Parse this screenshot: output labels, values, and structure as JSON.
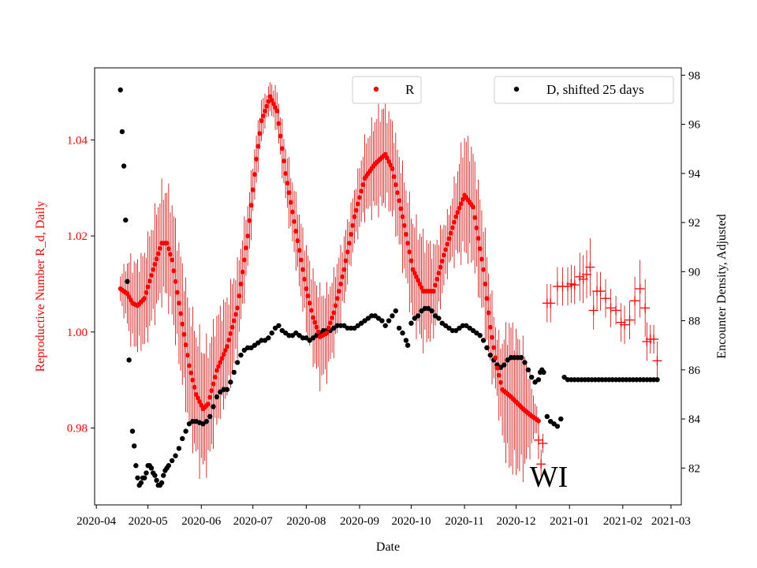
{
  "chart_data": {
    "type": "scatter",
    "title": "",
    "xlabel": "Date",
    "ylabel_left": "Reproductive Number R_d, Daily",
    "ylabel_right": "Encounter Density, Adjusted",
    "annotation": "WI",
    "x_tick_labels": [
      "2020-04",
      "2020-05",
      "2020-06",
      "2020-07",
      "2020-08",
      "2020-09",
      "2020-10",
      "2020-11",
      "2020-12",
      "2021-01",
      "2021-02",
      "2021-03"
    ],
    "x_tick_days": [
      0,
      30,
      61,
      91,
      122,
      153,
      183,
      214,
      244,
      275,
      306,
      334
    ],
    "xlim_days": [
      -1,
      340
    ],
    "left_axis": {
      "ylim": [
        0.964,
        1.055
      ],
      "ticks": [
        0.98,
        1.0,
        1.02,
        1.04
      ],
      "tick_labels": [
        "0.98",
        "1.00",
        "1.02",
        "1.04"
      ],
      "color": "#ff0000"
    },
    "right_axis": {
      "ylim": [
        80.5,
        98.3
      ],
      "ticks": [
        82,
        84,
        86,
        88,
        90,
        92,
        94,
        96,
        98
      ],
      "tick_labels": [
        "82",
        "84",
        "86",
        "88",
        "90",
        "92",
        "94",
        "96",
        "98"
      ],
      "color": "#000000"
    },
    "legend": [
      {
        "label": "R",
        "color": "#ff0000",
        "position": "top-center"
      },
      {
        "label": "D, shifted 25 days",
        "color": "#000000",
        "position": "top-right"
      }
    ],
    "series": [
      {
        "name": "R",
        "axis": "left",
        "color": "#ff0000",
        "marker": "circle",
        "anchors": [
          [
            14,
            1.009
          ],
          [
            18,
            1.008
          ],
          [
            21,
            1.006
          ],
          [
            24,
            1.0055
          ],
          [
            28,
            1.007
          ],
          [
            33,
            1.013
          ],
          [
            38,
            1.0185
          ],
          [
            41,
            1.0185
          ],
          [
            44,
            1.015
          ],
          [
            48,
            1.006
          ],
          [
            54,
            0.993
          ],
          [
            58,
            0.987
          ],
          [
            62,
            0.984
          ],
          [
            65,
            0.985
          ],
          [
            70,
            0.992
          ],
          [
            76,
            0.997
          ],
          [
            82,
            1.005
          ],
          [
            88,
            1.02
          ],
          [
            93,
            1.036
          ],
          [
            96,
            1.044
          ],
          [
            101,
            1.049
          ],
          [
            105,
            1.046
          ],
          [
            110,
            1.033
          ],
          [
            116,
            1.021
          ],
          [
            122,
            1.009
          ],
          [
            126,
            1.003
          ],
          [
            130,
            0.999
          ],
          [
            134,
            0.9998
          ],
          [
            138,
            1.004
          ],
          [
            144,
            1.013
          ],
          [
            150,
            1.024
          ],
          [
            156,
            1.032
          ],
          [
            162,
            1.035
          ],
          [
            168,
            1.037
          ],
          [
            172,
            1.034
          ],
          [
            178,
            1.024
          ],
          [
            184,
            1.013
          ],
          [
            190,
            1.0085
          ],
          [
            196,
            1.0085
          ],
          [
            202,
            1.016
          ],
          [
            209,
            1.024
          ],
          [
            214,
            1.0285
          ],
          [
            219,
            1.026
          ],
          [
            225,
            1.013
          ],
          [
            229,
            1.001
          ],
          [
            233,
            0.9925
          ],
          [
            236,
            0.988
          ],
          [
            241,
            0.9865
          ],
          [
            248,
            0.984
          ],
          [
            253,
            0.9825
          ],
          [
            257,
            0.9815
          ]
        ],
        "anchor_step_days": 1,
        "band_halfwidth_anchors": [
          [
            14,
            0.003
          ],
          [
            20,
            0.009
          ],
          [
            40,
            0.012
          ],
          [
            60,
            0.014
          ],
          [
            80,
            0.01
          ],
          [
            100,
            0.003
          ],
          [
            110,
            0.006
          ],
          [
            122,
            0.009
          ],
          [
            130,
            0.01
          ],
          [
            150,
            0.006
          ],
          [
            165,
            0.011
          ],
          [
            175,
            0.01
          ],
          [
            190,
            0.012
          ],
          [
            205,
            0.006
          ],
          [
            214,
            0.013
          ],
          [
            225,
            0.011
          ],
          [
            233,
            0.007
          ],
          [
            240,
            0.016
          ],
          [
            248,
            0.014
          ],
          [
            257,
            0.001
          ]
        ]
      },
      {
        "name": "R projection",
        "axis": "left",
        "color": "#ff0000",
        "marker": "plus",
        "points": [
          [
            257,
            0.9775
          ],
          [
            258.5,
            0.9725
          ],
          [
            259.5,
            0.9768
          ],
          [
            262,
            1.006
          ],
          [
            264,
            1.006
          ],
          [
            268,
            1.0095
          ],
          [
            271,
            1.0095
          ],
          [
            274,
            1.0095
          ],
          [
            276,
            1.01
          ],
          [
            278,
            1.0098
          ],
          [
            281,
            1.0115
          ],
          [
            283,
            1.011
          ],
          [
            285,
            1.012
          ],
          [
            287,
            1.0135
          ],
          [
            289,
            1.0045
          ],
          [
            291,
            1.0085
          ],
          [
            293,
            1.0085
          ],
          [
            296,
            1.007
          ],
          [
            299,
            1.005
          ],
          [
            302,
            1.0045
          ],
          [
            305,
            1.002
          ],
          [
            307,
            1.0015
          ],
          [
            310,
            1.0025
          ],
          [
            313,
            1.0065
          ],
          [
            316,
            1.009
          ],
          [
            319,
            1.005
          ],
          [
            320,
            0.998
          ],
          [
            322,
            0.9985
          ],
          [
            324,
            0.9985
          ],
          [
            326,
            0.994
          ]
        ],
        "error_halfwidths": [
          0.004,
          0.003,
          0.002,
          0.004,
          0.004,
          0.004,
          0.004,
          0.004,
          0.004,
          0.004,
          0.005,
          0.005,
          0.005,
          0.006,
          0.004,
          0.004,
          0.004,
          0.004,
          0.004,
          0.003,
          0.004,
          0.004,
          0.004,
          0.005,
          0.006,
          0.006,
          0.004,
          0.003,
          0.003,
          0.004
        ]
      },
      {
        "name": "D, shifted 25 days",
        "axis": "right",
        "color": "#000000",
        "marker": "circle",
        "points": [
          [
            14,
            97.4
          ],
          [
            15,
            95.7
          ],
          [
            16,
            94.3
          ],
          [
            17,
            92.1
          ],
          [
            18,
            89.6
          ],
          [
            19,
            86.4
          ],
          [
            21,
            83.5
          ],
          [
            22,
            82.9
          ],
          [
            23,
            82.1
          ],
          [
            24,
            81.6
          ],
          [
            25,
            81.3
          ],
          [
            26,
            81.4
          ],
          [
            27,
            81.6
          ],
          [
            28,
            81.6
          ],
          [
            29,
            81.8
          ],
          [
            30,
            82.1
          ],
          [
            31,
            82.1
          ],
          [
            32,
            82.0
          ],
          [
            33,
            81.8
          ],
          [
            34,
            81.7
          ],
          [
            35,
            81.5
          ],
          [
            36,
            81.3
          ],
          [
            37,
            81.3
          ],
          [
            38,
            81.4
          ],
          [
            39,
            81.7
          ],
          [
            40,
            81.9
          ],
          [
            41,
            82.0
          ],
          [
            42,
            82.1
          ],
          [
            44,
            82.3
          ],
          [
            46,
            82.5
          ],
          [
            48,
            82.8
          ],
          [
            50,
            83.2
          ],
          [
            52,
            83.5
          ],
          [
            54,
            83.8
          ],
          [
            56,
            83.9
          ],
          [
            58,
            83.9
          ],
          [
            60,
            83.85
          ],
          [
            62,
            83.8
          ],
          [
            64,
            83.9
          ],
          [
            66,
            84.1
          ],
          [
            68,
            84.5
          ],
          [
            70,
            84.9
          ],
          [
            72,
            85.1
          ],
          [
            74,
            85.2
          ],
          [
            76,
            85.2
          ],
          [
            78,
            85.5
          ],
          [
            80,
            85.9
          ],
          [
            82,
            86.3
          ],
          [
            84,
            86.6
          ],
          [
            86,
            86.8
          ],
          [
            88,
            86.9
          ],
          [
            90,
            86.9
          ],
          [
            92,
            87.0
          ],
          [
            94,
            87.1
          ],
          [
            96,
            87.2
          ],
          [
            98,
            87.2
          ],
          [
            100,
            87.3
          ],
          [
            102,
            87.5
          ],
          [
            104,
            87.7
          ],
          [
            106,
            87.8
          ],
          [
            108,
            87.6
          ],
          [
            110,
            87.5
          ],
          [
            112,
            87.4
          ],
          [
            114,
            87.4
          ],
          [
            116,
            87.5
          ],
          [
            118,
            87.4
          ],
          [
            120,
            87.3
          ],
          [
            122,
            87.3
          ],
          [
            124,
            87.2
          ],
          [
            126,
            87.3
          ],
          [
            128,
            87.4
          ],
          [
            130,
            87.5
          ],
          [
            132,
            87.6
          ],
          [
            134,
            87.6
          ],
          [
            136,
            87.6
          ],
          [
            138,
            87.7
          ],
          [
            140,
            87.8
          ],
          [
            142,
            87.8
          ],
          [
            144,
            87.8
          ],
          [
            146,
            87.7
          ],
          [
            148,
            87.7
          ],
          [
            150,
            87.7
          ],
          [
            152,
            87.8
          ],
          [
            154,
            87.9
          ],
          [
            156,
            88.0
          ],
          [
            158,
            88.1
          ],
          [
            160,
            88.2
          ],
          [
            162,
            88.2
          ],
          [
            164,
            88.1
          ],
          [
            166,
            88.0
          ],
          [
            168,
            87.8
          ],
          [
            170,
            88.0
          ],
          [
            172,
            88.2
          ],
          [
            174,
            88.4
          ],
          [
            176,
            87.7
          ],
          [
            178,
            87.5
          ],
          [
            180,
            87.2
          ],
          [
            181,
            87.0
          ],
          [
            183,
            87.9
          ],
          [
            185,
            88.1
          ],
          [
            187,
            88.2
          ],
          [
            189,
            88.4
          ],
          [
            191,
            88.5
          ],
          [
            193,
            88.5
          ],
          [
            195,
            88.4
          ],
          [
            197,
            88.2
          ],
          [
            199,
            88.1
          ],
          [
            201,
            87.9
          ],
          [
            203,
            87.8
          ],
          [
            205,
            87.7
          ],
          [
            207,
            87.6
          ],
          [
            209,
            87.6
          ],
          [
            211,
            87.7
          ],
          [
            213,
            87.8
          ],
          [
            215,
            87.8
          ],
          [
            217,
            87.7
          ],
          [
            219,
            87.6
          ],
          [
            221,
            87.5
          ],
          [
            223,
            87.4
          ],
          [
            225,
            87.2
          ],
          [
            227,
            86.9
          ],
          [
            229,
            86.6
          ],
          [
            231,
            86.4
          ],
          [
            233,
            86.2
          ],
          [
            235,
            86.1
          ],
          [
            237,
            86.2
          ],
          [
            239,
            86.4
          ],
          [
            241,
            86.5
          ],
          [
            243,
            86.5
          ],
          [
            245,
            86.5
          ],
          [
            247,
            86.5
          ],
          [
            249,
            86.3
          ],
          [
            251,
            86.0
          ],
          [
            253,
            85.7
          ],
          [
            255,
            85.5
          ],
          [
            257,
            85.6
          ],
          [
            258,
            85.9
          ],
          [
            259,
            86.0
          ],
          [
            260,
            85.9
          ],
          [
            262,
            84.1
          ],
          [
            264,
            83.9
          ],
          [
            266,
            83.8
          ],
          [
            268,
            83.7
          ],
          [
            270,
            84.0
          ],
          [
            272,
            85.7
          ],
          [
            274,
            85.6
          ],
          [
            276,
            85.6
          ],
          [
            278,
            85.6
          ],
          [
            280,
            85.6
          ],
          [
            282,
            85.6
          ],
          [
            284,
            85.6
          ],
          [
            286,
            85.6
          ],
          [
            288,
            85.6
          ],
          [
            290,
            85.6
          ],
          [
            292,
            85.6
          ],
          [
            294,
            85.6
          ],
          [
            296,
            85.6
          ],
          [
            298,
            85.6
          ],
          [
            300,
            85.6
          ],
          [
            302,
            85.6
          ],
          [
            304,
            85.6
          ],
          [
            306,
            85.6
          ],
          [
            308,
            85.6
          ],
          [
            310,
            85.6
          ],
          [
            312,
            85.6
          ],
          [
            314,
            85.6
          ],
          [
            316,
            85.6
          ],
          [
            318,
            85.6
          ],
          [
            320,
            85.6
          ],
          [
            322,
            85.6
          ],
          [
            324,
            85.6
          ],
          [
            326,
            85.6
          ]
        ]
      }
    ]
  }
}
